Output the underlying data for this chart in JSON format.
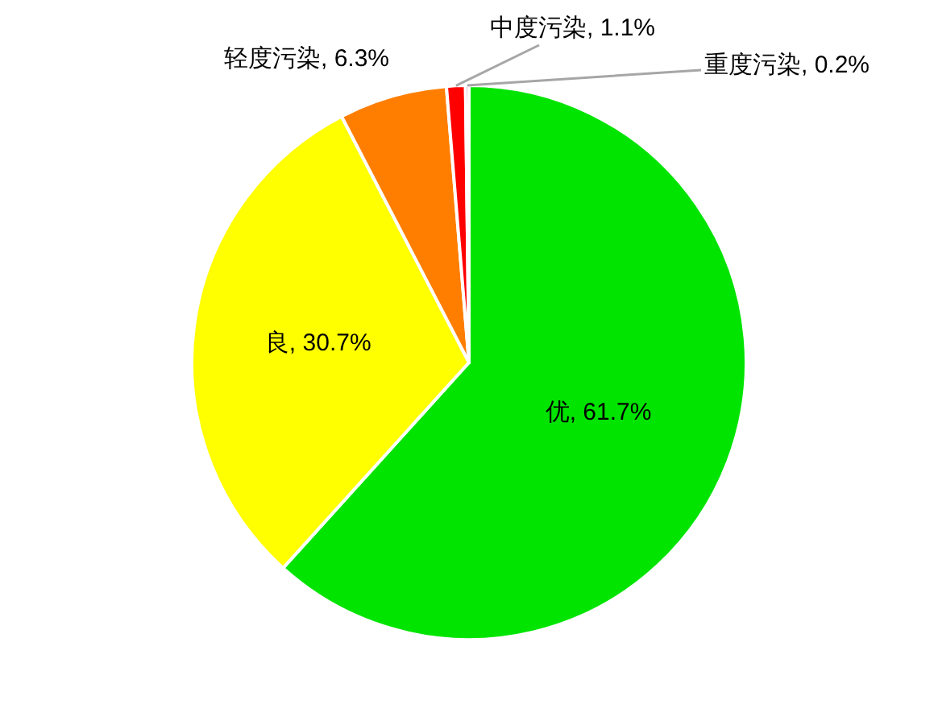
{
  "chart_data": {
    "type": "pie",
    "categories": [
      "优",
      "良",
      "轻度污染",
      "中度污染",
      "重度污染"
    ],
    "values": [
      61.7,
      30.7,
      6.3,
      1.1,
      0.2
    ],
    "colors": [
      "#00e400",
      "#ffff00",
      "#ff7e00",
      "#ff0000",
      "#99004c"
    ],
    "value_labels": [
      "61.7%",
      "30.7%",
      "6.3%",
      "1.1%",
      "0.2%"
    ]
  }
}
